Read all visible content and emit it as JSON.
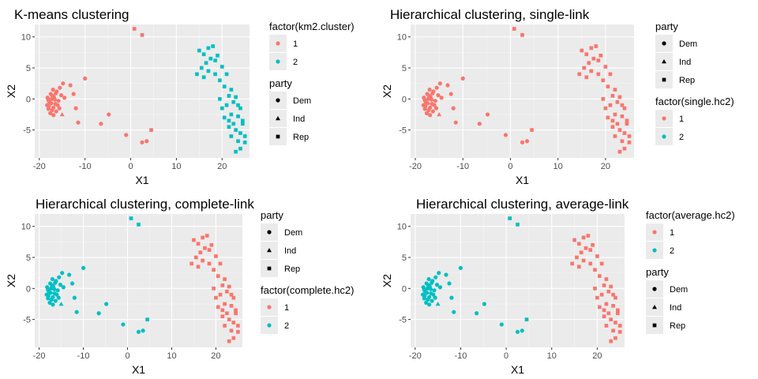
{
  "colors": {
    "cluster1": "#F8766D",
    "cluster2": "#00BFC4",
    "panel_bg": "#EBEBEB",
    "grid": "#FFFFFF",
    "text": "#000000",
    "tick_text": "#4D4D4D"
  },
  "chart_data": [
    {
      "type": "scatter",
      "title": "K-means clustering",
      "xlabel": "X1",
      "ylabel": "X2",
      "xlim": [
        -21,
        26
      ],
      "ylim": [
        -9.5,
        12
      ],
      "xticks": [
        -20,
        -10,
        0,
        10,
        20
      ],
      "yticks": [
        -5,
        0,
        5,
        10
      ],
      "grid": true,
      "cluster_legend_title": "factor(km2.cluster)",
      "party_legend_title": "party",
      "legend_order": [
        "cluster",
        "party"
      ],
      "cluster_labels": [
        "1",
        "2"
      ],
      "party_labels": [
        "Dem",
        "Ind",
        "Rep"
      ],
      "shape_by_party": {
        "Dem": "circle",
        "Ind": "triangle",
        "Rep": "square"
      },
      "cluster_of_group": {
        "dem_core": 1,
        "dem_spread": 1,
        "ind": 1,
        "rep_low": 1,
        "rep_right": 2
      }
    },
    {
      "type": "scatter",
      "title": "Hierarchical clustering, single-link",
      "xlabel": "X1",
      "ylabel": "X2",
      "xlim": [
        -21,
        26
      ],
      "ylim": [
        -9.5,
        12
      ],
      "xticks": [
        -20,
        -10,
        0,
        10,
        20
      ],
      "yticks": [
        -5,
        0,
        5,
        10
      ],
      "grid": true,
      "cluster_legend_title": "factor(single.hc2)",
      "party_legend_title": "party",
      "legend_order": [
        "party",
        "cluster"
      ],
      "cluster_labels": [
        "1",
        "2"
      ],
      "party_labels": [
        "Dem",
        "Ind",
        "Rep"
      ],
      "shape_by_party": {
        "Dem": "circle",
        "Ind": "triangle",
        "Rep": "square"
      },
      "cluster_of_group": {
        "dem_core": 1,
        "dem_spread": 1,
        "ind": 1,
        "rep_low": 1,
        "rep_right": 1
      }
    },
    {
      "type": "scatter",
      "title": "Hierarchical clustering, complete-link",
      "xlabel": "X1",
      "ylabel": "X2",
      "xlim": [
        -21,
        26
      ],
      "ylim": [
        -9.5,
        12
      ],
      "xticks": [
        -20,
        -10,
        0,
        10,
        20
      ],
      "yticks": [
        -5,
        0,
        5,
        10
      ],
      "grid": true,
      "cluster_legend_title": "factor(complete.hc2)",
      "party_legend_title": "party",
      "legend_order": [
        "party",
        "cluster"
      ],
      "cluster_labels": [
        "1",
        "2"
      ],
      "party_labels": [
        "Dem",
        "Ind",
        "Rep"
      ],
      "shape_by_party": {
        "Dem": "circle",
        "Ind": "triangle",
        "Rep": "square"
      },
      "cluster_of_group": {
        "dem_core": 2,
        "dem_spread": 2,
        "ind": 2,
        "rep_low": 2,
        "rep_right": 1
      }
    },
    {
      "type": "scatter",
      "title": "Hierarchical clustering, average-link",
      "xlabel": "X1",
      "ylabel": "X2",
      "xlim": [
        -21,
        26
      ],
      "ylim": [
        -9.5,
        12
      ],
      "xticks": [
        -20,
        -10,
        0,
        10,
        20
      ],
      "yticks": [
        -5,
        0,
        5,
        10
      ],
      "grid": true,
      "cluster_legend_title": "factor(average.hc2)",
      "party_legend_title": "party",
      "legend_order": [
        "cluster",
        "party"
      ],
      "cluster_labels": [
        "1",
        "2"
      ],
      "party_labels": [
        "Dem",
        "Ind",
        "Rep"
      ],
      "shape_by_party": {
        "Dem": "circle",
        "Ind": "triangle",
        "Rep": "square"
      },
      "cluster_of_group": {
        "dem_core": 2,
        "dem_spread": 2,
        "ind": 2,
        "rep_low": 2,
        "rep_right": 1
      }
    }
  ],
  "points": [
    {
      "x": -18.2,
      "y": 0.2,
      "party": "Dem",
      "group": "dem_core"
    },
    {
      "x": -17.8,
      "y": -0.5,
      "party": "Dem",
      "group": "dem_core"
    },
    {
      "x": -17.5,
      "y": 0.8,
      "party": "Dem",
      "group": "dem_core"
    },
    {
      "x": -17.9,
      "y": -1.2,
      "party": "Dem",
      "group": "dem_core"
    },
    {
      "x": -17.2,
      "y": -1.8,
      "party": "Dem",
      "group": "dem_core"
    },
    {
      "x": -16.8,
      "y": 0.3,
      "party": "Dem",
      "group": "dem_core"
    },
    {
      "x": -16.5,
      "y": -0.8,
      "party": "Dem",
      "group": "dem_core"
    },
    {
      "x": -17.6,
      "y": -2.3,
      "party": "Dem",
      "group": "dem_core"
    },
    {
      "x": -16.2,
      "y": 1.2,
      "party": "Dem",
      "group": "dem_core"
    },
    {
      "x": -18.0,
      "y": -0.2,
      "party": "Dem",
      "group": "dem_core"
    },
    {
      "x": -17.3,
      "y": 0.0,
      "party": "Dem",
      "group": "dem_core"
    },
    {
      "x": -16.9,
      "y": -1.4,
      "party": "Dem",
      "group": "dem_core"
    },
    {
      "x": -15.8,
      "y": -0.3,
      "party": "Dem",
      "group": "dem_core"
    },
    {
      "x": -15.5,
      "y": 1.8,
      "party": "Dem",
      "group": "dem_core"
    },
    {
      "x": -17.0,
      "y": 1.5,
      "party": "Dem",
      "group": "dem_core"
    },
    {
      "x": -16.3,
      "y": -2.0,
      "party": "Dem",
      "group": "dem_core"
    },
    {
      "x": -15.2,
      "y": 0.6,
      "party": "Dem",
      "group": "dem_core"
    },
    {
      "x": -14.8,
      "y": 2.5,
      "party": "Dem",
      "group": "dem_core"
    },
    {
      "x": -18.3,
      "y": -1.0,
      "party": "Dem",
      "group": "dem_core"
    },
    {
      "x": -16.0,
      "y": -1.0,
      "party": "Dem",
      "group": "dem_core"
    },
    {
      "x": -17.4,
      "y": -0.7,
      "party": "Dem",
      "group": "dem_core"
    },
    {
      "x": -16.6,
      "y": -0.1,
      "party": "Dem",
      "group": "dem_core"
    },
    {
      "x": -17.1,
      "y": 0.5,
      "party": "Dem",
      "group": "dem_core"
    },
    {
      "x": -16.4,
      "y": 0.9,
      "party": "Dem",
      "group": "dem_core"
    },
    {
      "x": -15.6,
      "y": -1.5,
      "party": "Dem",
      "group": "dem_core"
    },
    {
      "x": -18.0,
      "y": -1.6,
      "party": "Dem",
      "group": "dem_core"
    },
    {
      "x": -16.9,
      "y": -2.6,
      "party": "Dem",
      "group": "dem_core"
    },
    {
      "x": -14.5,
      "y": 0.2,
      "party": "Dem",
      "group": "dem_core"
    },
    {
      "x": -13.2,
      "y": 2.2,
      "party": "Dem",
      "group": "dem_spread"
    },
    {
      "x": -12.5,
      "y": 0.8,
      "party": "Dem",
      "group": "dem_spread"
    },
    {
      "x": -12.0,
      "y": -1.5,
      "party": "Dem",
      "group": "dem_spread"
    },
    {
      "x": -11.5,
      "y": -3.8,
      "party": "Dem",
      "group": "dem_spread"
    },
    {
      "x": -10.0,
      "y": 3.3,
      "party": "Dem",
      "group": "dem_spread"
    },
    {
      "x": -6.5,
      "y": -4.0,
      "party": "Dem",
      "group": "dem_spread"
    },
    {
      "x": -4.8,
      "y": -2.5,
      "party": "Dem",
      "group": "dem_spread"
    },
    {
      "x": -1.0,
      "y": -5.8,
      "party": "Dem",
      "group": "dem_spread"
    },
    {
      "x": 2.5,
      "y": -7.0,
      "party": "Dem",
      "group": "dem_spread"
    },
    {
      "x": 3.5,
      "y": -6.8,
      "party": "Dem",
      "group": "dem_spread"
    },
    {
      "x": -15.0,
      "y": -2.5,
      "party": "Ind",
      "group": "ind"
    },
    {
      "x": 0.8,
      "y": 11.3,
      "party": "Rep",
      "group": "rep_low"
    },
    {
      "x": 2.5,
      "y": 10.3,
      "party": "Rep",
      "group": "rep_low"
    },
    {
      "x": 4.5,
      "y": -5.0,
      "party": "Rep",
      "group": "rep_low"
    },
    {
      "x": 15.0,
      "y": 7.8,
      "party": "Rep",
      "group": "rep_right"
    },
    {
      "x": 16.0,
      "y": 7.2,
      "party": "Rep",
      "group": "rep_right"
    },
    {
      "x": 17.0,
      "y": 8.2,
      "party": "Rep",
      "group": "rep_right"
    },
    {
      "x": 17.5,
      "y": 6.5,
      "party": "Rep",
      "group": "rep_right"
    },
    {
      "x": 18.0,
      "y": 8.5,
      "party": "Rep",
      "group": "rep_right"
    },
    {
      "x": 16.5,
      "y": 5.8,
      "party": "Rep",
      "group": "rep_right"
    },
    {
      "x": 15.5,
      "y": 5.0,
      "party": "Rep",
      "group": "rep_right"
    },
    {
      "x": 18.5,
      "y": 6.2,
      "party": "Rep",
      "group": "rep_right"
    },
    {
      "x": 19.0,
      "y": 7.0,
      "party": "Rep",
      "group": "rep_right"
    },
    {
      "x": 17.0,
      "y": 4.5,
      "party": "Rep",
      "group": "rep_right"
    },
    {
      "x": 18.5,
      "y": 4.0,
      "party": "Rep",
      "group": "rep_right"
    },
    {
      "x": 20.0,
      "y": 5.2,
      "party": "Rep",
      "group": "rep_right"
    },
    {
      "x": 14.5,
      "y": 4.0,
      "party": "Rep",
      "group": "rep_right"
    },
    {
      "x": 16.0,
      "y": 3.5,
      "party": "Rep",
      "group": "rep_right"
    },
    {
      "x": 19.5,
      "y": 3.0,
      "party": "Rep",
      "group": "rep_right"
    },
    {
      "x": 21.0,
      "y": 4.0,
      "party": "Rep",
      "group": "rep_right"
    },
    {
      "x": 20.5,
      "y": 2.0,
      "party": "Rep",
      "group": "rep_right"
    },
    {
      "x": 22.0,
      "y": 1.5,
      "party": "Rep",
      "group": "rep_right"
    },
    {
      "x": 21.5,
      "y": 0.5,
      "party": "Rep",
      "group": "rep_right"
    },
    {
      "x": 23.0,
      "y": 0.3,
      "party": "Rep",
      "group": "rep_right"
    },
    {
      "x": 22.5,
      "y": -0.5,
      "party": "Rep",
      "group": "rep_right"
    },
    {
      "x": 21.0,
      "y": -1.0,
      "party": "Rep",
      "group": "rep_right"
    },
    {
      "x": 24.0,
      "y": -1.5,
      "party": "Rep",
      "group": "rep_right"
    },
    {
      "x": 22.0,
      "y": -2.5,
      "party": "Rep",
      "group": "rep_right"
    },
    {
      "x": 23.5,
      "y": -2.8,
      "party": "Rep",
      "group": "rep_right"
    },
    {
      "x": 20.5,
      "y": -3.0,
      "party": "Rep",
      "group": "rep_right"
    },
    {
      "x": 24.5,
      "y": -3.5,
      "party": "Rep",
      "group": "rep_right"
    },
    {
      "x": 22.5,
      "y": -4.0,
      "party": "Rep",
      "group": "rep_right"
    },
    {
      "x": 21.5,
      "y": -4.5,
      "party": "Rep",
      "group": "rep_right"
    },
    {
      "x": 23.0,
      "y": -5.0,
      "party": "Rep",
      "group": "rep_right"
    },
    {
      "x": 24.0,
      "y": -5.5,
      "party": "Rep",
      "group": "rep_right"
    },
    {
      "x": 22.0,
      "y": -6.0,
      "party": "Rep",
      "group": "rep_right"
    },
    {
      "x": 25.0,
      "y": -6.0,
      "party": "Rep",
      "group": "rep_right"
    },
    {
      "x": 23.5,
      "y": -6.8,
      "party": "Rep",
      "group": "rep_right"
    },
    {
      "x": 24.0,
      "y": -8.0,
      "party": "Rep",
      "group": "rep_right"
    },
    {
      "x": 25.0,
      "y": -7.0,
      "party": "Rep",
      "group": "rep_right"
    },
    {
      "x": 23.0,
      "y": -8.5,
      "party": "Rep",
      "group": "rep_right"
    },
    {
      "x": 20.0,
      "y": -1.5,
      "party": "Rep",
      "group": "rep_right"
    },
    {
      "x": 19.5,
      "y": 0.0,
      "party": "Rep",
      "group": "rep_right"
    },
    {
      "x": 21.5,
      "y": -3.5,
      "party": "Rep",
      "group": "rep_right"
    },
    {
      "x": 24.5,
      "y": -4.0,
      "party": "Rep",
      "group": "rep_right"
    },
    {
      "x": 23.5,
      "y": -1.0,
      "party": "Rep",
      "group": "rep_right"
    }
  ]
}
